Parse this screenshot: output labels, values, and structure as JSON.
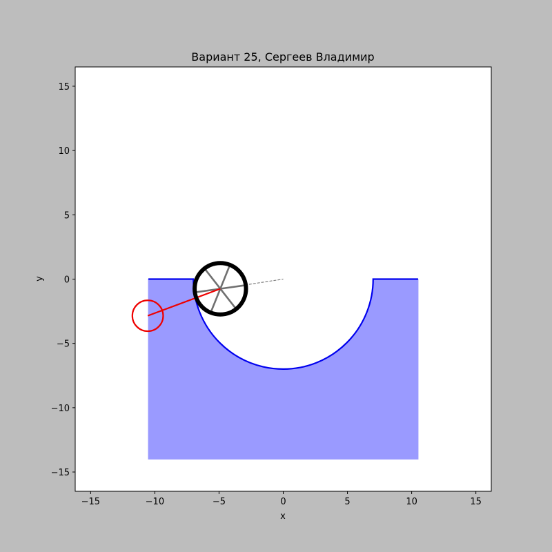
{
  "chart_data": {
    "type": "line",
    "title": "Вариант 25, Сергеев Владимир",
    "xlabel": "x",
    "ylabel": "y",
    "xlim": [
      -16.2,
      16.2
    ],
    "ylim": [
      -16.5,
      16.5
    ],
    "aspect": "equal",
    "grid": false,
    "xticks": [
      -15,
      -10,
      -5,
      0,
      5,
      10,
      15
    ],
    "yticks": [
      -15,
      -10,
      -5,
      0,
      5,
      10,
      15
    ],
    "xtick_labels": [
      "−15",
      "−10",
      "−5",
      "0",
      "5",
      "10",
      "15"
    ],
    "ytick_labels": [
      "−15",
      "−10",
      "−5",
      "0",
      "5",
      "10",
      "15"
    ],
    "ground": {
      "x_left": -10.5,
      "x_right": 10.5,
      "bottom": -14,
      "top": 0,
      "hole_center": [
        0,
        0
      ],
      "hole_radius": 7,
      "fill_color": "#9a9aff",
      "line_color": "#0000ee"
    },
    "wheel": {
      "center": [
        -4.9,
        -0.75
      ],
      "radius": 2,
      "color": "#000000",
      "spoke_color": "#707070",
      "spoke_count": 6,
      "spoke_angle_deg": 8
    },
    "guide_line": {
      "from": [
        -4.9,
        -0.75
      ],
      "to": [
        0,
        0
      ],
      "color": "#808080",
      "style": "dashed"
    },
    "pendulum": {
      "pivot": [
        -4.9,
        -0.75
      ],
      "bob": [
        -10.55,
        -2.85
      ],
      "bob_radius": 1.2,
      "color": "#ee0000"
    },
    "colors": {
      "figure_background": "#bdbdbd",
      "axes_background": "#ffffff"
    }
  }
}
